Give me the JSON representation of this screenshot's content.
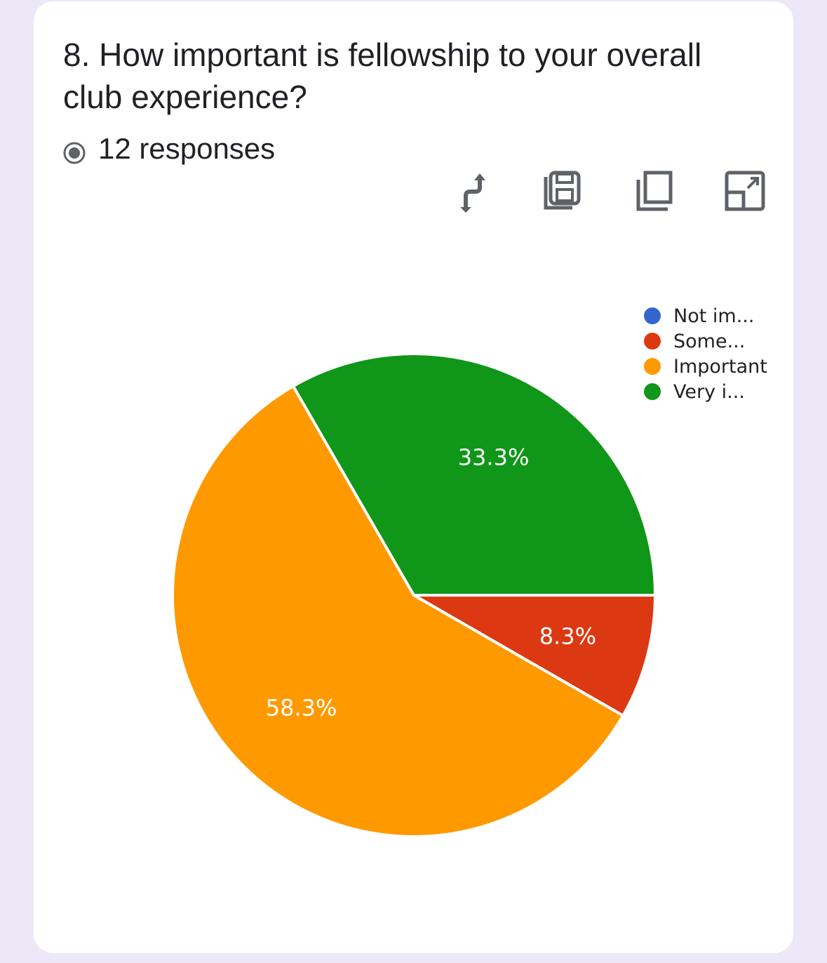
{
  "question": {
    "title": "8. How important is fellowship to your overall club experience?",
    "responses_text": "12 responses"
  },
  "toolbar": {
    "icons": [
      "swap-vertical-icon",
      "save-icon",
      "copy-icon",
      "open-in-new-icon"
    ]
  },
  "chart_data": {
    "type": "pie",
    "categories": [
      "Not im...",
      "Some...",
      "Important",
      "Very i..."
    ],
    "values": [
      0,
      8.3,
      58.3,
      33.3
    ],
    "data_labels": [
      "",
      "8.3%",
      "58.3%",
      "33.3%"
    ],
    "colors": [
      "#3366cc",
      "#dc3912",
      "#ff9900",
      "#109618"
    ],
    "legend_position": "top-right"
  }
}
